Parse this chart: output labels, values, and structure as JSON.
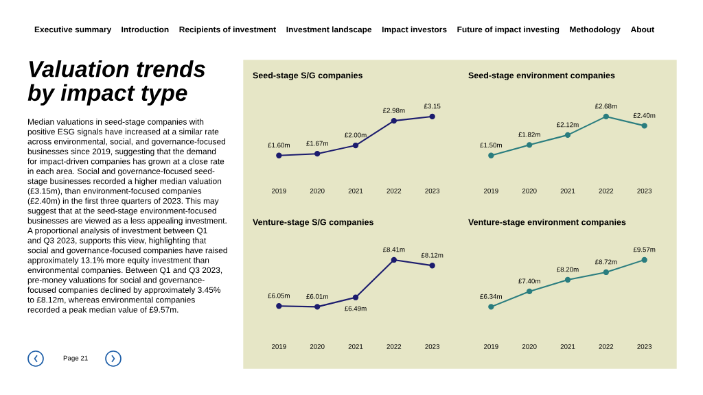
{
  "chart_data": [
    {
      "type": "other",
      "title": "Valuation trends\nby impact type",
      "annotations": [
        "Executive summary",
        "Introduction",
        "Recipients of investment",
        "Investment landscape",
        "Impact investors",
        "Future of impact investing",
        "Methodology",
        "About",
        "Median valuations in seed-stage companies with\npositive ESG signals have increased at a similar rate\nacross environmental, social, and governance-focused\nbusinesses since 2019, suggesting that the demand\nfor impact-driven companies has grown at a close rate\nin each area. Social and governance-focused seed-\nstage businesses recorded a higher median valuation\n(£3.15m), than environment-focused companies\n(£2.40m) in the first three quarters of 2023. This may\nsuggest that at the seed-stage environment-focused\nbusinesses are viewed as a less appealing investment.\nA proportional analysis of investment between Q1\nand Q3 2023, supports this view, highlighting that\nsocial and governance-focused companies have raised\napproximately 13.1% more equity investment than\nenvironmental companies. Between Q1 and Q3 2023,\npre-money valuations for social and governance-\nfocused companies declined by approximately 3.45%\nto £8.12m, whereas environmental companies\nrecorded a peak median value of £9.57m.",
        "Page 21"
      ]
    },
    {
      "type": "line",
      "title": "Seed-stage S/G companies",
      "categories": [
        "2019",
        "2020",
        "2021",
        "2022",
        "2023"
      ],
      "color": "#1c1c6e",
      "values": [
        1.6,
        1.67,
        2.0,
        2.98,
        3.15
      ],
      "value_labels": [
        "£1.60m",
        "£1.67m",
        "£2.00m",
        "£2.98m",
        "£3.15"
      ],
      "marker": "circle"
    },
    {
      "type": "line",
      "title": "Seed-stage environment companies",
      "categories": [
        "2019",
        "2020",
        "2021",
        "2022",
        "2023"
      ],
      "color": "#2a7d7f",
      "values": [
        1.5,
        1.82,
        2.12,
        2.68,
        2.4
      ],
      "value_labels": [
        "£1.50m",
        "£1.82m",
        "£2.12m",
        "£2.68m",
        "£2.40m"
      ],
      "marker": "circle"
    },
    {
      "type": "line",
      "title": "Venture-stage S/G companies",
      "categories": [
        "2019",
        "2020",
        "2021",
        "2022",
        "2023"
      ],
      "color": "#1c1c6e",
      "values": [
        6.05,
        6.01,
        6.49,
        8.41,
        8.12
      ],
      "value_labels": [
        "£6.05m",
        "£6.01m",
        "£6.49m",
        "£8.41m",
        "£8.12m"
      ],
      "marker": "circle"
    },
    {
      "type": "line",
      "title": "Venture-stage environment companies",
      "categories": [
        "2019",
        "2020",
        "2021",
        "2022",
        "2023"
      ],
      "color": "#2a7d7f",
      "values": [
        6.34,
        7.4,
        8.2,
        8.72,
        9.57
      ],
      "value_labels": [
        "£6.34m",
        "£7.40m",
        "£8.20m",
        "£8.72m",
        "£9.57m"
      ],
      "marker": "circle"
    }
  ]
}
